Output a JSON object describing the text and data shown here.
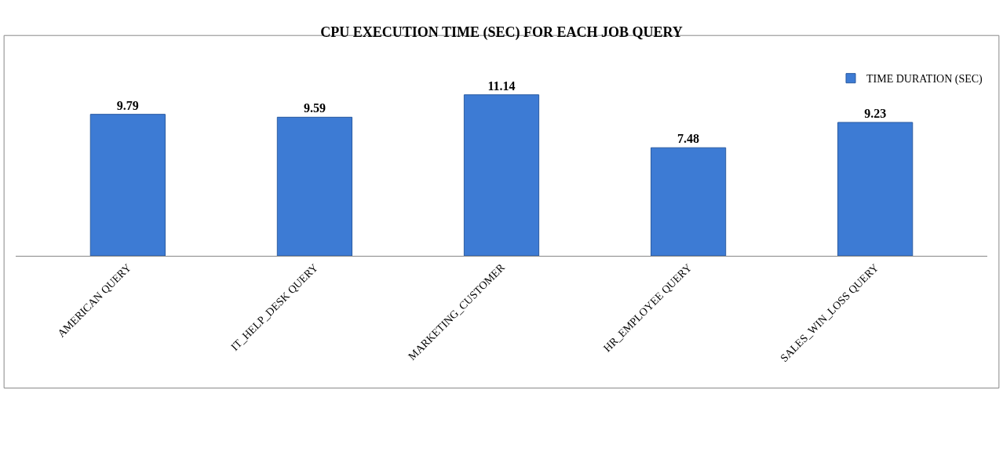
{
  "chart_data": {
    "type": "bar",
    "title": "CPU EXECUTION TIME (SEC) FOR EACH JOB QUERY",
    "categories": [
      "AMERICAN QUERY",
      "IT_HELP_DESK QUERY",
      "MARKETING_CUSTOMER",
      "HR_EMPLOYEE QUERY",
      "SALES_WIN_LOSS QUERY"
    ],
    "series": [
      {
        "name": "TIME DURATION (SEC)",
        "color": "#3d7bd4",
        "values": [
          9.79,
          9.59,
          11.14,
          7.48,
          9.23
        ]
      }
    ],
    "data_labels": true,
    "legend": "top right"
  }
}
